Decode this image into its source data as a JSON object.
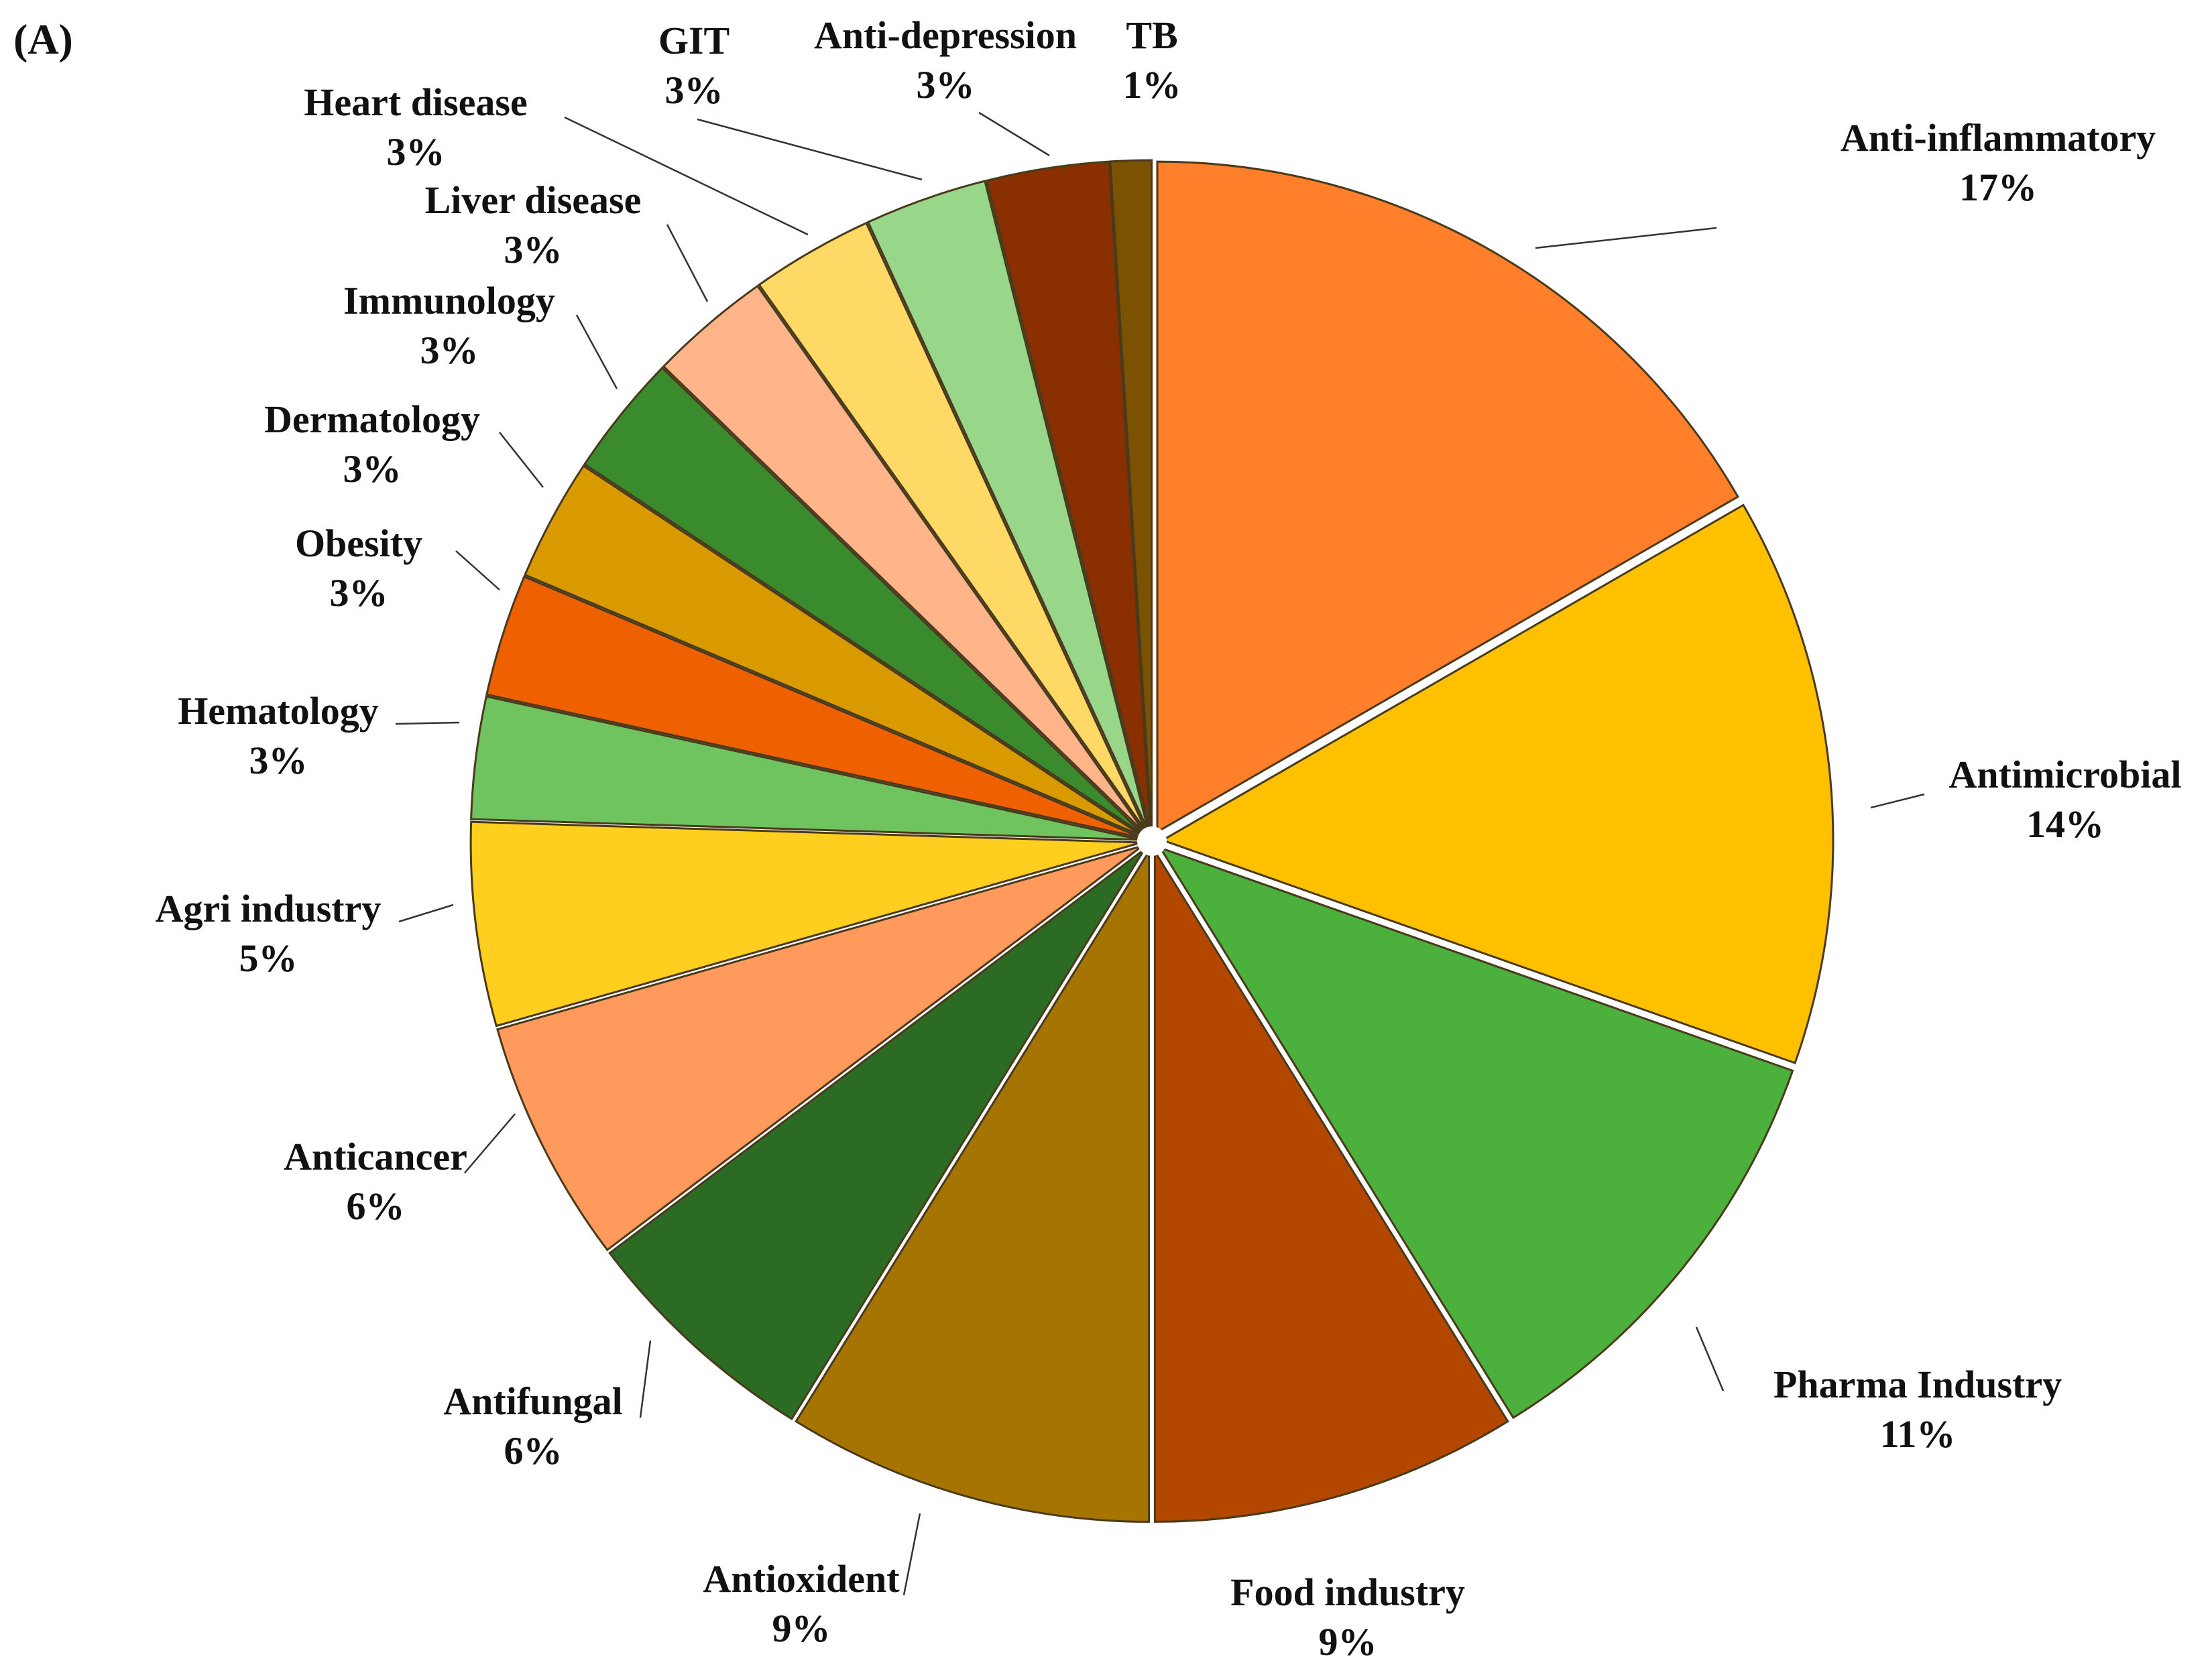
{
  "panel_label": "(A)",
  "chart_data": {
    "type": "pie",
    "title": "",
    "slices": [
      {
        "label": "Anti-inflammatory",
        "percent_label": "17%",
        "value": 17,
        "color": "#FF7F2A"
      },
      {
        "label": "Antimicrobial",
        "percent_label": "14%",
        "value": 14,
        "color": "#FFC000"
      },
      {
        "label": "Pharma Industry",
        "percent_label": "11%",
        "value": 11,
        "color": "#4BB13C"
      },
      {
        "label": "Food industry",
        "percent_label": "9%",
        "value": 9,
        "color": "#B34700"
      },
      {
        "label": "Antioxident",
        "percent_label": "9%",
        "value": 9,
        "color": "#A67400"
      },
      {
        "label": "Antifungal",
        "percent_label": "6%",
        "value": 6,
        "color": "#2B6B24"
      },
      {
        "label": "Anticancer",
        "percent_label": "6%",
        "value": 6,
        "color": "#FF9A5C"
      },
      {
        "label": "Agri industry",
        "percent_label": "5%",
        "value": 5,
        "color": "#FFCF1F"
      },
      {
        "label": "Hematology",
        "percent_label": "3%",
        "value": 3,
        "color": "#6FC45F"
      },
      {
        "label": "Obesity",
        "percent_label": "3%",
        "value": 3,
        "color": "#EE6000"
      },
      {
        "label": "Dermatology",
        "percent_label": "3%",
        "value": 3,
        "color": "#D99A00"
      },
      {
        "label": "Immunology",
        "percent_label": "3%",
        "value": 3,
        "color": "#3A8A2E"
      },
      {
        "label": "Liver disease",
        "percent_label": "3%",
        "value": 3,
        "color": "#FFB48A"
      },
      {
        "label": "Heart disease",
        "percent_label": "3%",
        "value": 3,
        "color": "#FFD966"
      },
      {
        "label": "GIT",
        "percent_label": "3%",
        "value": 3,
        "color": "#98D68A"
      },
      {
        "label": "Anti-depression",
        "percent_label": "3%",
        "value": 3,
        "color": "#8A3000"
      },
      {
        "label": "TB",
        "percent_label": "1%",
        "value": 1,
        "color": "#7A5200"
      }
    ]
  }
}
